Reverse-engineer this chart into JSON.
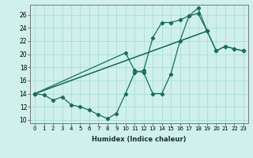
{
  "xlabel": "Humidex (Indice chaleur)",
  "bg_color": "#cff0eb",
  "line_color": "#1a6b60",
  "grid_color": "#aaddd6",
  "xlim": [
    -0.5,
    23.5
  ],
  "ylim": [
    9.5,
    27.5
  ],
  "xticks": [
    0,
    1,
    2,
    3,
    4,
    5,
    6,
    7,
    8,
    9,
    10,
    11,
    12,
    13,
    14,
    15,
    16,
    17,
    18,
    19,
    20,
    21,
    22,
    23
  ],
  "yticks": [
    10,
    12,
    14,
    16,
    18,
    20,
    22,
    24,
    26
  ],
  "series1": [
    [
      0,
      14
    ],
    [
      1,
      13.8
    ],
    [
      2,
      13
    ],
    [
      3,
      13.5
    ],
    [
      4,
      12.3
    ],
    [
      5,
      12
    ],
    [
      6,
      11.5
    ],
    [
      7,
      10.8
    ],
    [
      8,
      10.2
    ],
    [
      9,
      11
    ],
    [
      10,
      14
    ],
    [
      11,
      17.2
    ],
    [
      12,
      17.5
    ],
    [
      13,
      22.5
    ],
    [
      14,
      24.8
    ],
    [
      15,
      24.8
    ],
    [
      16,
      25.2
    ],
    [
      17,
      25.8
    ],
    [
      18,
      27
    ],
    [
      19,
      23.5
    ]
  ],
  "series2": [
    [
      0,
      14
    ],
    [
      19,
      23.5
    ],
    [
      20,
      20.5
    ],
    [
      21,
      21.2
    ],
    [
      22,
      20.8
    ],
    [
      23,
      20.5
    ]
  ],
  "series3": [
    [
      0,
      14
    ],
    [
      10,
      20.2
    ],
    [
      11,
      17.5
    ],
    [
      12,
      17.2
    ],
    [
      13,
      14
    ],
    [
      14,
      14
    ],
    [
      15,
      17
    ],
    [
      16,
      22
    ],
    [
      17,
      25.8
    ],
    [
      18,
      26.2
    ],
    [
      19,
      23.5
    ]
  ],
  "series4": [
    [
      0,
      14
    ],
    [
      19,
      23.5
    ],
    [
      20,
      20.5
    ],
    [
      21,
      21.2
    ],
    [
      22,
      20.8
    ],
    [
      23,
      20.5
    ]
  ]
}
